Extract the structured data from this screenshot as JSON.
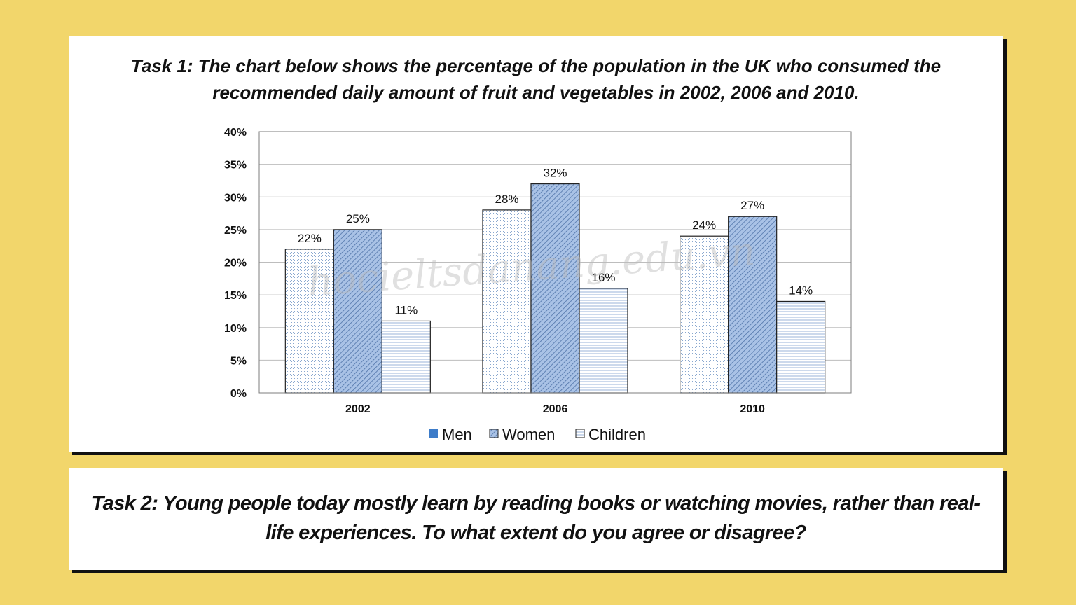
{
  "task1": {
    "lead": "Task 1:",
    "text": "The chart below shows the percentage of the population in the UK who consumed the recommended daily amount of fruit and vegetables in 2002, 2006 and 2010."
  },
  "task2": {
    "lead": "Task 2:",
    "text": "Young people today mostly learn by reading books or watching movies, rather than real-life experiences. To what extent do you agree or disagree?"
  },
  "watermark": "hocieltsdanang.edu.vn",
  "colors": {
    "background": "#f2d66b",
    "card": "#ffffff",
    "men_fill": "#dde9f6",
    "women_fill": "#8fb0dc",
    "children_fill": "#e6eef8",
    "legend_men": "#3d7cc9"
  },
  "chart_data": {
    "type": "bar",
    "title": "",
    "categories": [
      "2002",
      "2006",
      "2010"
    ],
    "series": [
      {
        "name": "Men",
        "values": [
          22,
          28,
          24
        ]
      },
      {
        "name": "Women",
        "values": [
          25,
          32,
          27
        ]
      },
      {
        "name": "Children",
        "values": [
          11,
          16,
          14
        ]
      }
    ],
    "data_labels": [
      [
        "22%",
        "28%",
        "24%"
      ],
      [
        "25%",
        "32%",
        "27%"
      ],
      [
        "11%",
        "16%",
        "14%"
      ]
    ],
    "y_ticks": [
      "0%",
      "5%",
      "10%",
      "15%",
      "20%",
      "25%",
      "30%",
      "35%",
      "40%"
    ],
    "ylim": [
      0,
      40
    ],
    "xlabel": "",
    "ylabel": "",
    "grid": true,
    "legend": {
      "position": "bottom",
      "labels": [
        "Men",
        "Women",
        "Children"
      ]
    }
  }
}
